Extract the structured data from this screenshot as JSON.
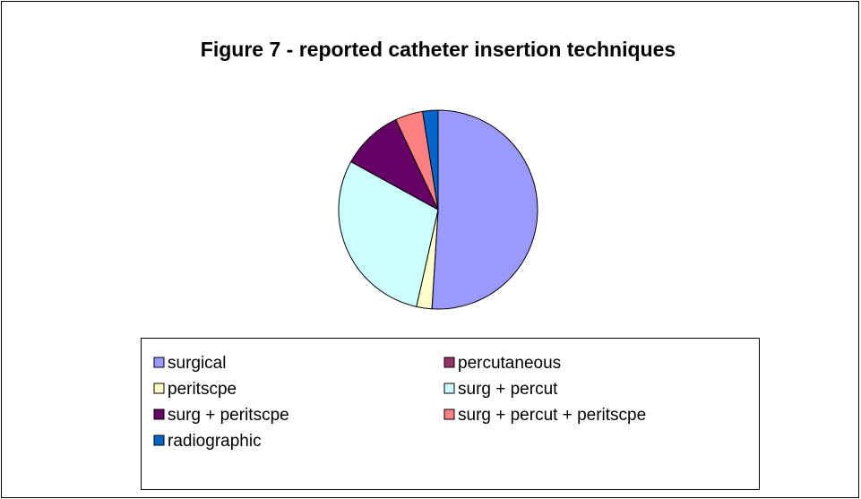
{
  "chart_data": {
    "type": "pie",
    "title": "Figure 7 - reported catheter insertion techniques",
    "categories": [
      "surgical",
      "percutaneous",
      "peritscpe",
      "surg + percut",
      "surg + peritscpe",
      "surg + percut + peritscpe",
      "radiographic"
    ],
    "values": [
      51,
      0,
      2.5,
      29.5,
      10,
      4.5,
      2.5
    ],
    "colors": [
      "#9999ff",
      "#993366",
      "#ffffcc",
      "#ccffff",
      "#660066",
      "#ff8080",
      "#0066cc"
    ],
    "legend": "bottom"
  }
}
